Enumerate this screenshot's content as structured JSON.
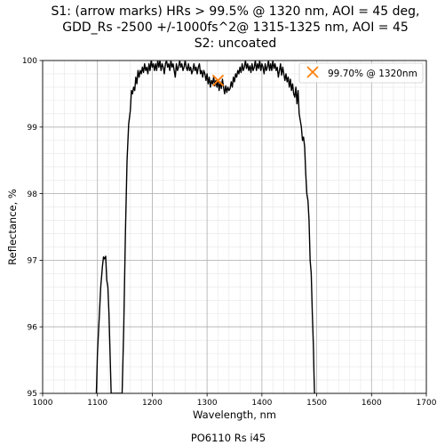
{
  "chart_data": {
    "type": "line",
    "title_lines": [
      "S1: (arrow marks) HRs > 99.5% @ 1320 nm, AOI = 45 deg,",
      "GDD_Rs -2500 +/-1000fs^2@ 1315-1325 nm, AOI = 45",
      "S2: uncoated"
    ],
    "xlabel": "Wavelength, nm",
    "ylabel": "Reflectance, %",
    "caption": "PO6110 Rs i45",
    "xlim": [
      1000,
      1700
    ],
    "ylim": [
      95,
      100
    ],
    "xticks": [
      "1000",
      "1100",
      "1200",
      "1300",
      "1400",
      "1500",
      "1600",
      "1700"
    ],
    "yticks": [
      "95",
      "96",
      "97",
      "98",
      "99",
      "100"
    ],
    "x_minor_step": 20,
    "y_minor_step": 0.2,
    "grid": true,
    "legend_position": "top-right",
    "legend": [
      {
        "label": "99.70% @ 1320nm",
        "marker": "x",
        "color": "#ff7f0e"
      }
    ],
    "marker_point": {
      "x": 1320,
      "y": 99.7
    },
    "series": [
      {
        "color": "#000000",
        "points": [
          [
            1098,
            95.0
          ],
          [
            1100,
            95.6
          ],
          [
            1103,
            96.1
          ],
          [
            1106,
            96.6
          ],
          [
            1109,
            96.9
          ],
          [
            1111,
            97.05
          ],
          [
            1113,
            97.02
          ],
          [
            1115,
            97.06
          ],
          [
            1117,
            96.7
          ],
          [
            1119,
            96.6
          ],
          [
            1121,
            96.2
          ],
          [
            1123,
            95.6
          ],
          [
            1125,
            95.0
          ],
          [
            1145,
            95.0
          ],
          [
            1148,
            96.0
          ],
          [
            1151,
            97.4
          ],
          [
            1154,
            98.5
          ],
          [
            1157,
            99.05
          ],
          [
            1160,
            99.25
          ],
          [
            1162,
            99.55
          ],
          [
            1164,
            99.5
          ],
          [
            1166,
            99.6
          ],
          [
            1168,
            99.55
          ],
          [
            1170,
            99.75
          ],
          [
            1172,
            99.65
          ],
          [
            1174,
            99.85
          ],
          [
            1176,
            99.75
          ],
          [
            1178,
            99.85
          ],
          [
            1180,
            99.8
          ],
          [
            1182,
            99.9
          ],
          [
            1184,
            99.82
          ],
          [
            1186,
            99.95
          ],
          [
            1188,
            99.85
          ],
          [
            1190,
            99.9
          ],
          [
            1192,
            99.8
          ],
          [
            1194,
            99.95
          ],
          [
            1196,
            99.85
          ],
          [
            1198,
            100.0
          ],
          [
            1200,
            99.9
          ],
          [
            1202,
            99.95
          ],
          [
            1204,
            99.85
          ],
          [
            1206,
            99.95
          ],
          [
            1208,
            99.85
          ],
          [
            1210,
            100.0
          ],
          [
            1212,
            99.9
          ],
          [
            1214,
            100.0
          ],
          [
            1216,
            99.85
          ],
          [
            1218,
            99.95
          ],
          [
            1220,
            99.9
          ],
          [
            1222,
            99.8
          ],
          [
            1224,
            99.95
          ],
          [
            1226,
            100.0
          ],
          [
            1228,
            99.9
          ],
          [
            1230,
            99.95
          ],
          [
            1232,
            99.85
          ],
          [
            1234,
            100.0
          ],
          [
            1236,
            99.9
          ],
          [
            1238,
            99.95
          ],
          [
            1240,
            99.85
          ],
          [
            1242,
            99.75
          ],
          [
            1244,
            99.95
          ],
          [
            1246,
            99.85
          ],
          [
            1248,
            99.9
          ],
          [
            1250,
            100.0
          ],
          [
            1252,
            99.9
          ],
          [
            1254,
            99.95
          ],
          [
            1256,
            99.85
          ],
          [
            1258,
            99.9
          ],
          [
            1260,
            100.0
          ],
          [
            1262,
            99.9
          ],
          [
            1264,
            99.85
          ],
          [
            1266,
            99.95
          ],
          [
            1268,
            99.85
          ],
          [
            1270,
            99.9
          ],
          [
            1272,
            99.8
          ],
          [
            1274,
            99.85
          ],
          [
            1276,
            99.95
          ],
          [
            1278,
            99.85
          ],
          [
            1280,
            99.9
          ],
          [
            1282,
            99.8
          ],
          [
            1284,
            99.9
          ],
          [
            1286,
            99.95
          ],
          [
            1288,
            99.8
          ],
          [
            1290,
            99.85
          ],
          [
            1292,
            99.75
          ],
          [
            1294,
            99.85
          ],
          [
            1296,
            99.8
          ],
          [
            1298,
            99.7
          ],
          [
            1300,
            99.8
          ],
          [
            1302,
            99.65
          ],
          [
            1304,
            99.75
          ],
          [
            1306,
            99.6
          ],
          [
            1308,
            99.7
          ],
          [
            1310,
            99.65
          ],
          [
            1312,
            99.75
          ],
          [
            1314,
            99.62
          ],
          [
            1316,
            99.7
          ],
          [
            1318,
            99.6
          ],
          [
            1320,
            99.7
          ],
          [
            1322,
            99.55
          ],
          [
            1324,
            99.68
          ],
          [
            1326,
            99.58
          ],
          [
            1328,
            99.72
          ],
          [
            1330,
            99.6
          ],
          [
            1332,
            99.5
          ],
          [
            1334,
            99.62
          ],
          [
            1336,
            99.52
          ],
          [
            1338,
            99.6
          ],
          [
            1340,
            99.55
          ],
          [
            1342,
            99.58
          ],
          [
            1344,
            99.68
          ],
          [
            1346,
            99.6
          ],
          [
            1348,
            99.75
          ],
          [
            1350,
            99.68
          ],
          [
            1352,
            99.8
          ],
          [
            1354,
            99.75
          ],
          [
            1356,
            99.85
          ],
          [
            1358,
            99.8
          ],
          [
            1360,
            99.9
          ],
          [
            1362,
            99.82
          ],
          [
            1364,
            99.95
          ],
          [
            1366,
            99.85
          ],
          [
            1368,
            99.9
          ],
          [
            1370,
            100.0
          ],
          [
            1372,
            99.88
          ],
          [
            1374,
            99.95
          ],
          [
            1376,
            99.85
          ],
          [
            1378,
            99.92
          ],
          [
            1380,
            99.82
          ],
          [
            1382,
            99.95
          ],
          [
            1384,
            99.85
          ],
          [
            1386,
            99.9
          ],
          [
            1388,
            100.0
          ],
          [
            1390,
            99.85
          ],
          [
            1392,
            99.95
          ],
          [
            1394,
            99.88
          ],
          [
            1396,
            100.0
          ],
          [
            1398,
            99.85
          ],
          [
            1400,
            99.95
          ],
          [
            1402,
            99.9
          ],
          [
            1404,
            99.8
          ],
          [
            1406,
            99.95
          ],
          [
            1408,
            99.85
          ],
          [
            1410,
            99.9
          ],
          [
            1412,
            100.0
          ],
          [
            1414,
            99.85
          ],
          [
            1416,
            99.95
          ],
          [
            1418,
            99.85
          ],
          [
            1420,
            100.0
          ],
          [
            1422,
            99.88
          ],
          [
            1424,
            99.95
          ],
          [
            1426,
            99.85
          ],
          [
            1428,
            99.9
          ],
          [
            1430,
            99.75
          ],
          [
            1432,
            99.85
          ],
          [
            1434,
            99.95
          ],
          [
            1436,
            99.78
          ],
          [
            1438,
            99.9
          ],
          [
            1440,
            99.8
          ],
          [
            1442,
            99.7
          ],
          [
            1444,
            99.8
          ],
          [
            1446,
            99.68
          ],
          [
            1448,
            99.75
          ],
          [
            1450,
            99.6
          ],
          [
            1452,
            99.72
          ],
          [
            1454,
            99.55
          ],
          [
            1456,
            99.65
          ],
          [
            1458,
            99.5
          ],
          [
            1460,
            99.45
          ],
          [
            1462,
            99.6
          ],
          [
            1464,
            99.35
          ],
          [
            1466,
            99.55
          ],
          [
            1468,
            99.2
          ],
          [
            1470,
            99.1
          ],
          [
            1472,
            99.0
          ],
          [
            1474,
            98.8
          ],
          [
            1476,
            98.85
          ],
          [
            1478,
            98.7
          ],
          [
            1480,
            98.3
          ],
          [
            1482,
            98.0
          ],
          [
            1484,
            97.9
          ],
          [
            1486,
            97.6
          ],
          [
            1488,
            97.0
          ],
          [
            1490,
            96.8
          ],
          [
            1492,
            96.2
          ],
          [
            1494,
            95.7
          ],
          [
            1495,
            95.3
          ],
          [
            1496,
            95.0
          ]
        ]
      }
    ]
  }
}
